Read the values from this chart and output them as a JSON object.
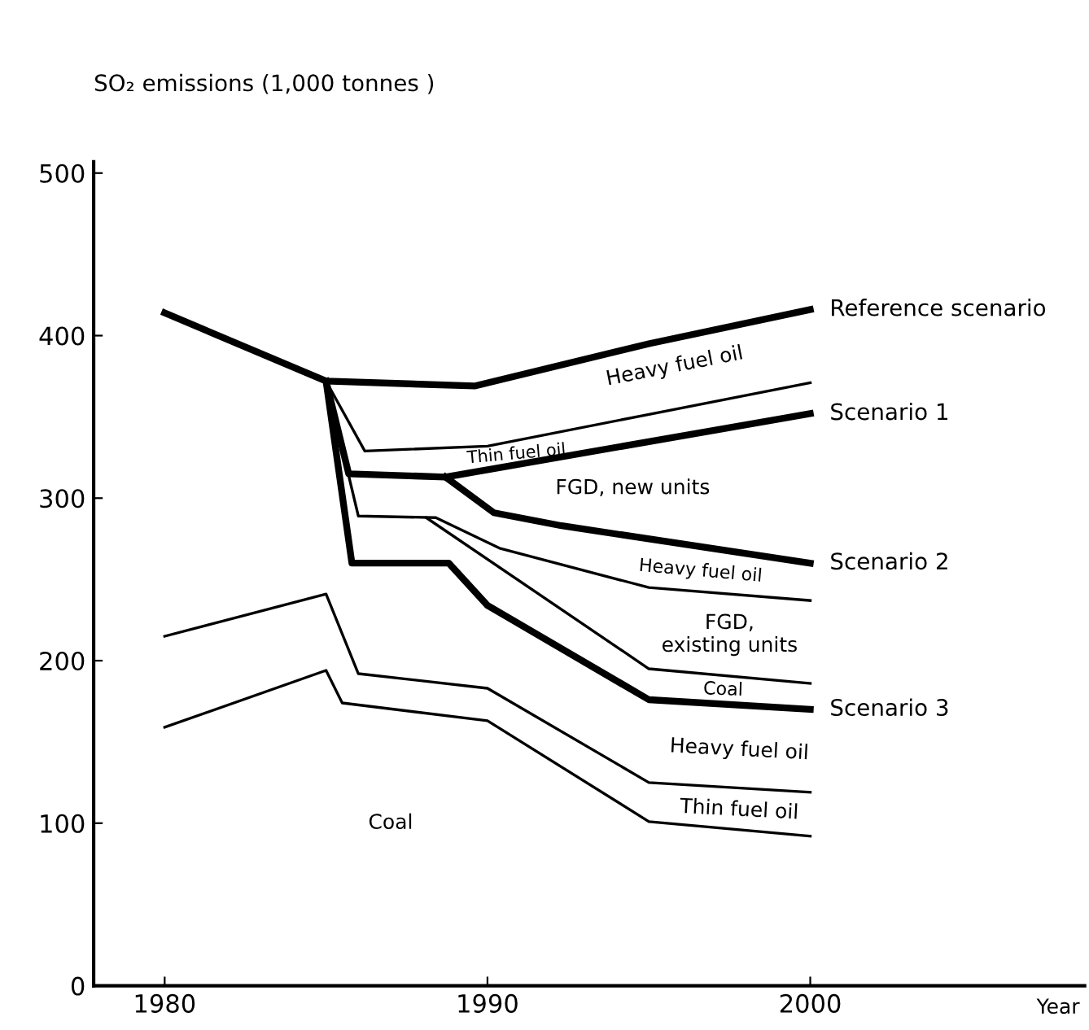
{
  "chart_data": {
    "type": "line",
    "ylabel": "SO₂ emissions (1,000 tonnes )",
    "xlabel": "Year",
    "xlim": [
      1977.8,
      2008.5
    ],
    "ylim": [
      0,
      507
    ],
    "xticks": [
      1980,
      1990,
      2000
    ],
    "yticks": [
      0,
      100,
      200,
      300,
      400,
      500
    ],
    "grid": false,
    "legend": false,
    "marker": "none",
    "line_style": "solid",
    "series": [
      {
        "name": "Reference scenario",
        "color": "#000000",
        "x": [
          1980,
          1985,
          1989.6,
          1995,
          2000
        ],
        "values": [
          414,
          372,
          369,
          395,
          416
        ]
      },
      {
        "color": "#000000",
        "x": [
          1985,
          1986.2,
          1990,
          2000
        ],
        "values": [
          372,
          329,
          332,
          371
        ]
      },
      {
        "name": "Scenario 1",
        "color": "#000000",
        "x": [
          1985,
          1985.7,
          1988.7,
          2000
        ],
        "values": [
          372,
          315,
          313,
          352
        ]
      },
      {
        "name": "Scenario 2",
        "color": "#000000",
        "x": [
          1988.7,
          1990.2,
          1992.3,
          2000
        ],
        "values": [
          313,
          291,
          283,
          260
        ]
      },
      {
        "color": "#000000",
        "x": [
          1985,
          1986.0,
          1988.4,
          1990.4,
          1995,
          2000
        ],
        "values": [
          372,
          289,
          288,
          269,
          245,
          237
        ]
      },
      {
        "color": "#000000",
        "x": [
          1988.1,
          1995,
          2000
        ],
        "values": [
          288,
          195,
          186
        ]
      },
      {
        "name": "Scenario 3",
        "color": "#000000",
        "x": [
          1985,
          1985.8,
          1988.8,
          1990,
          1995,
          2000
        ],
        "values": [
          372,
          260,
          260,
          234,
          176,
          170
        ]
      },
      {
        "color": "#000000",
        "x": [
          1980,
          1985,
          1986,
          1990,
          1995,
          2000
        ],
        "values": [
          215,
          241,
          192,
          183,
          125,
          119
        ]
      },
      {
        "color": "#000000",
        "x": [
          1980,
          1985,
          1985.5,
          1990,
          1995,
          2000
        ],
        "values": [
          159,
          194,
          174,
          163,
          101,
          92
        ]
      }
    ],
    "annotations": [
      "Heavy fuel oil",
      "Thin fuel oil",
      "FGD, new units",
      "Heavy fuel oil",
      "FGD,\nexisting units",
      "Coal",
      "Heavy fuel oil",
      "Thin fuel oil",
      "Coal"
    ]
  }
}
